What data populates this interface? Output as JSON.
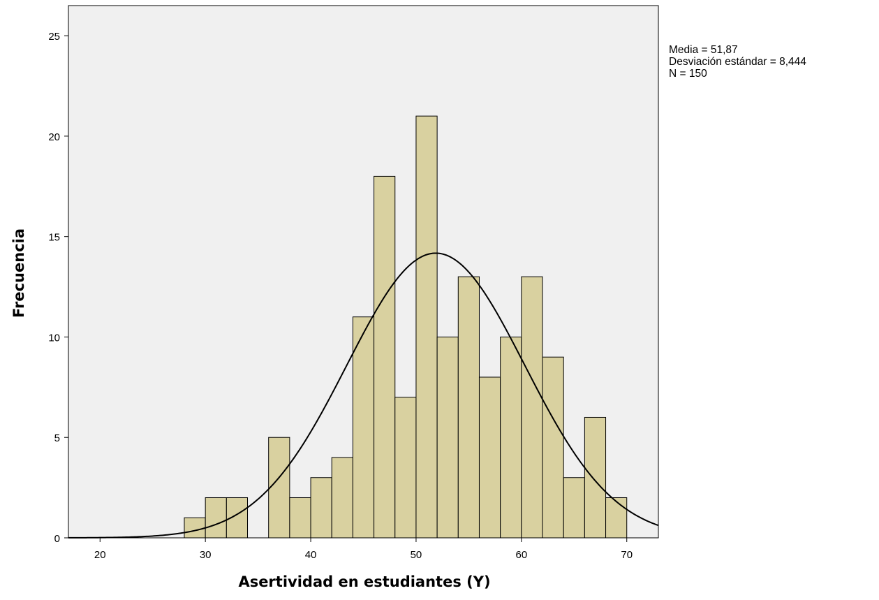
{
  "colors": {
    "plot_background": "#f0f0f0",
    "bar_fill": "#d9d1a0",
    "bar_stroke": "#000000",
    "curve": "#000000"
  },
  "stats": {
    "mean_label": "Media = 51,87",
    "sd_label": "Desviación estándar = 8,444",
    "n_label": "N = 150"
  },
  "chart_data": {
    "type": "bar",
    "subtype": "histogram",
    "xlabel": "Asertividad en estudiantes (Y)",
    "ylabel": "Frecuencia",
    "xlim": [
      17,
      73
    ],
    "ylim": [
      0,
      26.5
    ],
    "xticks": [
      "20",
      "30",
      "40",
      "50",
      "60",
      "70"
    ],
    "yticks": [
      "0",
      "5",
      "10",
      "15",
      "20",
      "25"
    ],
    "bin_width": 2,
    "bins": [
      {
        "start": 28,
        "end": 30,
        "count": 1
      },
      {
        "start": 30,
        "end": 32,
        "count": 2
      },
      {
        "start": 32,
        "end": 34,
        "count": 2
      },
      {
        "start": 36,
        "end": 38,
        "count": 5
      },
      {
        "start": 38,
        "end": 40,
        "count": 2
      },
      {
        "start": 40,
        "end": 42,
        "count": 3
      },
      {
        "start": 42,
        "end": 44,
        "count": 4
      },
      {
        "start": 44,
        "end": 46,
        "count": 11
      },
      {
        "start": 46,
        "end": 48,
        "count": 18
      },
      {
        "start": 48,
        "end": 50,
        "count": 7
      },
      {
        "start": 50,
        "end": 52,
        "count": 21
      },
      {
        "start": 52,
        "end": 54,
        "count": 10
      },
      {
        "start": 54,
        "end": 56,
        "count": 13
      },
      {
        "start": 56,
        "end": 58,
        "count": 8
      },
      {
        "start": 58,
        "end": 60,
        "count": 10
      },
      {
        "start": 60,
        "end": 62,
        "count": 13
      },
      {
        "start": 62,
        "end": 64,
        "count": 9
      },
      {
        "start": 64,
        "end": 66,
        "count": 3
      },
      {
        "start": 66,
        "end": 68,
        "count": 6
      },
      {
        "start": 68,
        "end": 70,
        "count": 2
      }
    ],
    "normal_curve": {
      "mean": 51.87,
      "sd": 8.444,
      "n": 150
    },
    "grid": false,
    "legend": "none"
  }
}
